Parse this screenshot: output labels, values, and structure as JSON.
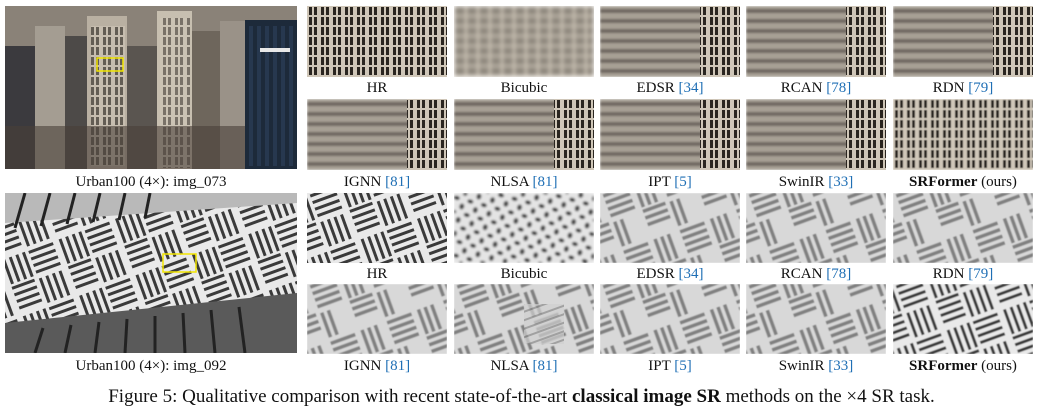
{
  "figure": {
    "caption": {
      "prefix": "Figure 5: Qualitative comparison with recent state-of-the-art ",
      "bold": "classical image SR",
      "suffix": " methods on the ×4 SR task."
    },
    "sets": [
      {
        "label": "Urban100 (4×): img_073",
        "row1": [
          {
            "name": "HR",
            "cite": ""
          },
          {
            "name": "Bicubic",
            "cite": ""
          },
          {
            "name": "EDSR ",
            "cite": "[34]"
          },
          {
            "name": "RCAN ",
            "cite": "[78]"
          },
          {
            "name": "RDN ",
            "cite": "[79]"
          }
        ],
        "row2": [
          {
            "name": "IGNN ",
            "cite": "[81]"
          },
          {
            "name": "NLSA ",
            "cite": "[81]"
          },
          {
            "name": "IPT ",
            "cite": "[5]"
          },
          {
            "name": "SwinIR ",
            "cite": "[33]"
          },
          {
            "name_bold": "SRFormer",
            "name": " (ours)"
          }
        ]
      },
      {
        "label": "Urban100 (4×): img_092",
        "row1": [
          {
            "name": "HR",
            "cite": ""
          },
          {
            "name": "Bicubic",
            "cite": ""
          },
          {
            "name": "EDSR ",
            "cite": "[34]"
          },
          {
            "name": "RCAN ",
            "cite": "[78]"
          },
          {
            "name": "RDN ",
            "cite": "[79]"
          }
        ],
        "row2": [
          {
            "name": "IGNN ",
            "cite": "[81]"
          },
          {
            "name": "NLSA ",
            "cite": "[81]"
          },
          {
            "name": "IPT ",
            "cite": "[5]"
          },
          {
            "name": "SwinIR ",
            "cite": "[33]"
          },
          {
            "name_bold": "SRFormer",
            "name": " (ours)"
          }
        ]
      }
    ],
    "colors": {
      "cite": "#1f6fb5",
      "highlight_box": "#f2e600"
    }
  }
}
